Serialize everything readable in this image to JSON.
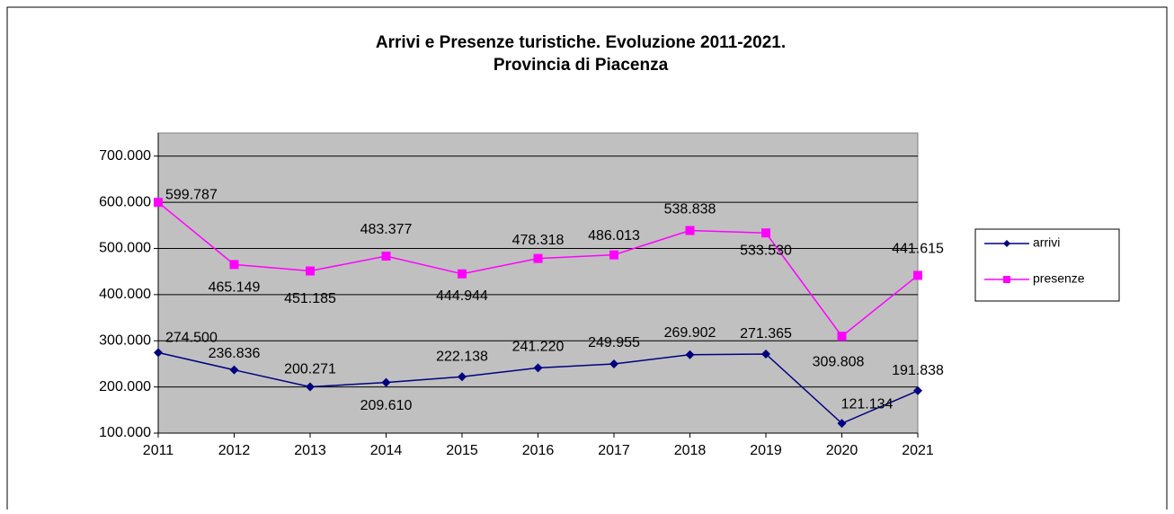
{
  "chart_data": {
    "type": "line",
    "title": [
      "Arrivi e Presenze turistiche. Evoluzione 2011-2021.",
      "Provincia di Piacenza"
    ],
    "categories": [
      "2011",
      "2012",
      "2013",
      "2014",
      "2015",
      "2016",
      "2017",
      "2018",
      "2019",
      "2020",
      "2021"
    ],
    "series": [
      {
        "name": "arrivi",
        "color": "#000080",
        "marker": "diamond",
        "values": [
          274500,
          236836,
          200271,
          209610,
          222138,
          241220,
          249955,
          269902,
          271365,
          121134,
          191838
        ],
        "value_labels": [
          "274.500",
          "236.836",
          "200.271",
          "209.610",
          "222.138",
          "241.220",
          "249.955",
          "269.902",
          "271.365",
          "121.134",
          "191.838"
        ]
      },
      {
        "name": "presenze",
        "color": "#ff00ff",
        "marker": "square",
        "values": [
          599787,
          465149,
          451185,
          483377,
          444944,
          478318,
          486013,
          538838,
          533530,
          309808,
          441615
        ],
        "value_labels": [
          "599.787",
          "465.149",
          "451.185",
          "483.377",
          "444.944",
          "478.318",
          "486.013",
          "538.838",
          "533.530",
          "309.808",
          "441.615"
        ]
      }
    ],
    "ylim": [
      100000,
      750000
    ],
    "yticks": [
      {
        "value": 100000,
        "label": "100.000"
      },
      {
        "value": 200000,
        "label": "200.000"
      },
      {
        "value": 300000,
        "label": "300.000"
      },
      {
        "value": 400000,
        "label": "400.000"
      },
      {
        "value": 500000,
        "label": "500.000"
      },
      {
        "value": 600000,
        "label": "600.000"
      },
      {
        "value": 700000,
        "label": "700.000"
      }
    ],
    "grid": true,
    "plot_background": "#c0c0c0",
    "legend": "right"
  }
}
